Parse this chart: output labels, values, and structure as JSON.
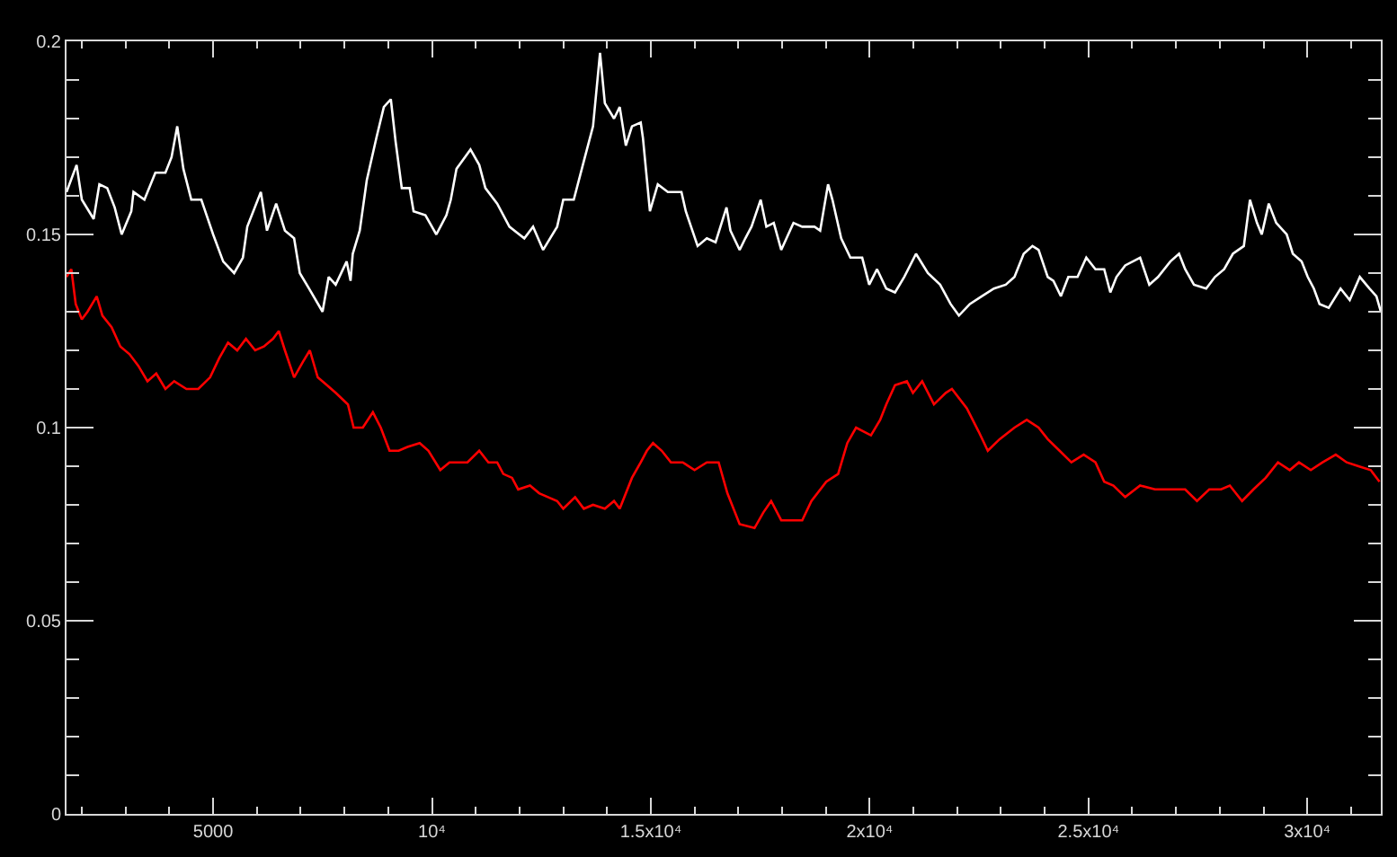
{
  "chart_data": {
    "type": "line",
    "xlim": [
      1650,
      31680
    ],
    "ylim": [
      0,
      0.2
    ],
    "xticks": [
      {
        "value": 2000,
        "label": null
      },
      {
        "value": 3000,
        "label": null
      },
      {
        "value": 4000,
        "label": null
      },
      5000,
      {
        "value": 6000,
        "label": null
      },
      {
        "value": 7000,
        "label": null
      },
      {
        "value": 8000,
        "label": null
      },
      {
        "value": 9000,
        "label": null
      },
      {
        "value": 10000,
        "label": "10⁴"
      },
      {
        "value": 11000,
        "label": null
      },
      {
        "value": 12000,
        "label": null
      },
      {
        "value": 13000,
        "label": null
      },
      {
        "value": 14000,
        "label": null
      },
      {
        "value": 15000,
        "label": "1.5x10⁴"
      },
      {
        "value": 16000,
        "label": null
      },
      {
        "value": 17000,
        "label": null
      },
      {
        "value": 18000,
        "label": null
      },
      {
        "value": 19000,
        "label": null
      },
      {
        "value": 20000,
        "label": "2x10⁴"
      },
      {
        "value": 21000,
        "label": null
      },
      {
        "value": 22000,
        "label": null
      },
      {
        "value": 23000,
        "label": null
      },
      {
        "value": 24000,
        "label": null
      },
      {
        "value": 25000,
        "label": "2.5x10⁴"
      },
      {
        "value": 26000,
        "label": null
      },
      {
        "value": 27000,
        "label": null
      },
      {
        "value": 28000,
        "label": null
      },
      {
        "value": 29000,
        "label": null
      },
      {
        "value": 30000,
        "label": "3x10⁴"
      },
      {
        "value": 31000,
        "label": null
      }
    ],
    "yticks": [
      0,
      {
        "value": 0.01,
        "label": null
      },
      {
        "value": 0.02,
        "label": null
      },
      {
        "value": 0.03,
        "label": null
      },
      {
        "value": 0.04,
        "label": null
      },
      0.05,
      {
        "value": 0.06,
        "label": null
      },
      {
        "value": 0.07,
        "label": null
      },
      {
        "value": 0.08,
        "label": null
      },
      {
        "value": 0.09,
        "label": null
      },
      0.1,
      {
        "value": 0.11,
        "label": null
      },
      {
        "value": 0.12,
        "label": null
      },
      {
        "value": 0.13,
        "label": null
      },
      {
        "value": 0.14,
        "label": null
      },
      0.15,
      {
        "value": 0.16,
        "label": null
      },
      {
        "value": 0.17,
        "label": null
      },
      {
        "value": 0.18,
        "label": null
      },
      {
        "value": 0.19,
        "label": null
      },
      0.2
    ],
    "series": [
      {
        "color": "#ffffff",
        "x": [
          1650,
          1880,
          2000,
          2270,
          2400,
          2580,
          2750,
          2910,
          3130,
          3180,
          3430,
          3680,
          3910,
          4050,
          4180,
          4320,
          4500,
          4730,
          5000,
          5230,
          5480,
          5680,
          5780,
          6090,
          6230,
          6440,
          6640,
          6850,
          6980,
          7190,
          7500,
          7640,
          7800,
          8050,
          8140,
          8190,
          8350,
          8510,
          8730,
          8900,
          9060,
          9170,
          9310,
          9490,
          9580,
          9850,
          10100,
          10330,
          10430,
          10560,
          10880,
          11080,
          11220,
          11490,
          11770,
          12110,
          12310,
          12540,
          12860,
          13000,
          13240,
          13470,
          13680,
          13840,
          13950,
          14160,
          14290,
          14430,
          14570,
          14770,
          14820,
          14980,
          15160,
          15390,
          15700,
          15800,
          16070,
          16280,
          16480,
          16730,
          16820,
          17030,
          17160,
          17300,
          17510,
          17640,
          17810,
          17980,
          18260,
          18460,
          18740,
          18870,
          19050,
          19150,
          19350,
          19560,
          19830,
          19990,
          20170,
          20380,
          20580,
          20790,
          21060,
          21330,
          21610,
          21850,
          22040,
          22290,
          22560,
          22840,
          23110,
          23310,
          23520,
          23720,
          23860,
          24070,
          24200,
          24370,
          24540,
          24750,
          24950,
          25160,
          25360,
          25500,
          25640,
          25840,
          26180,
          26390,
          26590,
          26870,
          27070,
          27210,
          27410,
          27690,
          27890,
          28100,
          28300,
          28550,
          28690,
          28850,
          28960,
          29120,
          29290,
          29530,
          29670,
          29870,
          30010,
          30150,
          30280,
          30490,
          30760,
          30970,
          31200,
          31420,
          31580,
          31680
        ],
        "values": [
          0.161,
          0.168,
          0.159,
          0.154,
          0.163,
          0.162,
          0.157,
          0.15,
          0.156,
          0.161,
          0.159,
          0.166,
          0.166,
          0.17,
          0.178,
          0.167,
          0.159,
          0.159,
          0.15,
          0.143,
          0.14,
          0.144,
          0.152,
          0.161,
          0.151,
          0.158,
          0.151,
          0.149,
          0.14,
          0.136,
          0.13,
          0.139,
          0.137,
          0.143,
          0.138,
          0.145,
          0.151,
          0.164,
          0.175,
          0.183,
          0.185,
          0.174,
          0.162,
          0.162,
          0.156,
          0.155,
          0.15,
          0.155,
          0.159,
          0.167,
          0.172,
          0.168,
          0.162,
          0.158,
          0.152,
          0.149,
          0.152,
          0.146,
          0.152,
          0.159,
          0.159,
          0.169,
          0.178,
          0.197,
          0.184,
          0.18,
          0.183,
          0.173,
          0.178,
          0.179,
          0.175,
          0.156,
          0.163,
          0.161,
          0.161,
          0.156,
          0.147,
          0.149,
          0.148,
          0.157,
          0.151,
          0.146,
          0.149,
          0.152,
          0.159,
          0.152,
          0.153,
          0.146,
          0.153,
          0.152,
          0.152,
          0.151,
          0.163,
          0.159,
          0.149,
          0.144,
          0.144,
          0.137,
          0.141,
          0.136,
          0.135,
          0.139,
          0.145,
          0.14,
          0.137,
          0.132,
          0.129,
          0.132,
          0.134,
          0.136,
          0.137,
          0.139,
          0.145,
          0.147,
          0.146,
          0.139,
          0.138,
          0.134,
          0.139,
          0.139,
          0.144,
          0.141,
          0.141,
          0.135,
          0.139,
          0.142,
          0.144,
          0.137,
          0.139,
          0.143,
          0.145,
          0.141,
          0.137,
          0.136,
          0.139,
          0.141,
          0.145,
          0.147,
          0.159,
          0.153,
          0.15,
          0.158,
          0.153,
          0.15,
          0.145,
          0.143,
          0.139,
          0.136,
          0.132,
          0.131,
          0.136,
          0.133,
          0.139,
          0.136,
          0.134,
          0.13
        ]
      },
      {
        "color": "#ff0000",
        "x": [
          1650,
          1760,
          1860,
          2000,
          2130,
          2340,
          2470,
          2680,
          2880,
          3090,
          3290,
          3500,
          3700,
          3910,
          4110,
          4390,
          4660,
          4930,
          5140,
          5340,
          5550,
          5750,
          5960,
          6160,
          6370,
          6500,
          6640,
          6850,
          7050,
          7210,
          7390,
          7600,
          7800,
          8080,
          8210,
          8420,
          8650,
          8830,
          9030,
          9240,
          9440,
          9720,
          9920,
          10190,
          10400,
          10810,
          11080,
          11290,
          11490,
          11630,
          11830,
          11970,
          12240,
          12450,
          12650,
          12860,
          13000,
          13270,
          13470,
          13680,
          13950,
          14160,
          14290,
          14570,
          14770,
          14910,
          15050,
          15250,
          15460,
          15730,
          16000,
          16280,
          16550,
          16750,
          17030,
          17370,
          17570,
          17750,
          17980,
          18190,
          18460,
          18670,
          19010,
          19280,
          19490,
          19690,
          20030,
          20240,
          20380,
          20580,
          20850,
          20990,
          21200,
          21470,
          21740,
          21880,
          22220,
          22490,
          22700,
          22970,
          23310,
          23590,
          23860,
          24070,
          24340,
          24610,
          24890,
          25160,
          25360,
          25570,
          25840,
          26180,
          26520,
          26930,
          27210,
          27480,
          27760,
          28030,
          28230,
          28510,
          28770,
          29050,
          29330,
          29600,
          29810,
          30080,
          30350,
          30650,
          30900,
          31170,
          31450,
          31650
        ],
        "values": [
          0.139,
          0.141,
          0.132,
          0.128,
          0.13,
          0.134,
          0.129,
          0.126,
          0.121,
          0.119,
          0.116,
          0.112,
          0.114,
          0.11,
          0.112,
          0.11,
          0.11,
          0.113,
          0.118,
          0.122,
          0.12,
          0.123,
          0.12,
          0.121,
          0.123,
          0.125,
          0.12,
          0.113,
          0.117,
          0.12,
          0.113,
          0.111,
          0.109,
          0.106,
          0.1,
          0.1,
          0.104,
          0.1,
          0.094,
          0.094,
          0.095,
          0.096,
          0.094,
          0.089,
          0.091,
          0.091,
          0.094,
          0.091,
          0.091,
          0.088,
          0.087,
          0.084,
          0.085,
          0.083,
          0.082,
          0.081,
          0.079,
          0.082,
          0.079,
          0.08,
          0.079,
          0.081,
          0.079,
          0.087,
          0.091,
          0.094,
          0.096,
          0.094,
          0.091,
          0.091,
          0.089,
          0.091,
          0.091,
          0.083,
          0.075,
          0.074,
          0.078,
          0.081,
          0.076,
          0.076,
          0.076,
          0.081,
          0.086,
          0.088,
          0.096,
          0.1,
          0.098,
          0.102,
          0.106,
          0.111,
          0.112,
          0.109,
          0.112,
          0.106,
          0.109,
          0.11,
          0.105,
          0.099,
          0.094,
          0.097,
          0.1,
          0.102,
          0.1,
          0.097,
          0.094,
          0.091,
          0.093,
          0.091,
          0.086,
          0.085,
          0.082,
          0.085,
          0.084,
          0.084,
          0.084,
          0.081,
          0.084,
          0.084,
          0.085,
          0.081,
          0.084,
          0.087,
          0.091,
          0.089,
          0.091,
          0.089,
          0.091,
          0.093,
          0.091,
          0.09,
          0.089,
          0.086
        ]
      }
    ]
  }
}
